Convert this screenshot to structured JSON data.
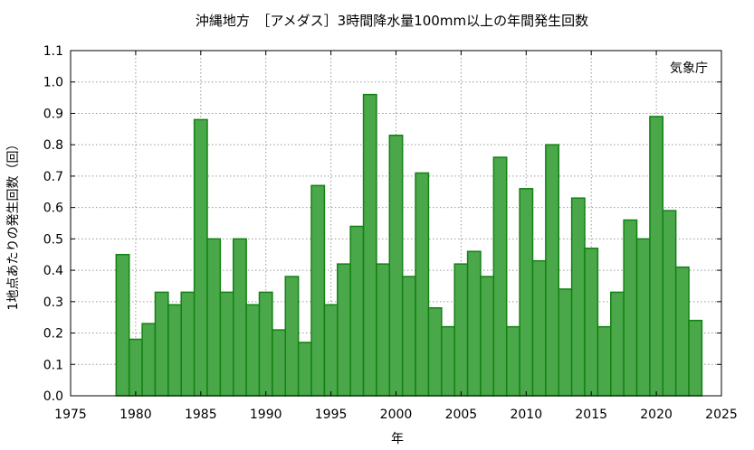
{
  "chart_data": {
    "type": "bar",
    "title": "沖縄地方　［アメダス］3時間降水量100mm以上の年間発生回数",
    "xlabel": "年",
    "ylabel": "1地点あたりの発生回数（回）",
    "credit": "気象庁",
    "xlim": [
      1975,
      2025
    ],
    "ylim": [
      0.0,
      1.1
    ],
    "xticks": [
      "1975",
      "1980",
      "1985",
      "1990",
      "1995",
      "2000",
      "2005",
      "2010",
      "2015",
      "2020",
      "2025"
    ],
    "yticks": [
      "0.0",
      "0.1",
      "0.2",
      "0.3",
      "0.4",
      "0.5",
      "0.6",
      "0.7",
      "0.8",
      "0.9",
      "1.0",
      "1.1"
    ],
    "grid": true,
    "bar_color": "#4aa74a",
    "bar_edge_color": "#128212",
    "x": [
      1979,
      1980,
      1981,
      1982,
      1983,
      1984,
      1985,
      1986,
      1987,
      1988,
      1989,
      1990,
      1991,
      1992,
      1993,
      1994,
      1995,
      1996,
      1997,
      1998,
      1999,
      2000,
      2001,
      2002,
      2003,
      2004,
      2005,
      2006,
      2007,
      2008,
      2009,
      2010,
      2011,
      2012,
      2013,
      2014,
      2015,
      2016,
      2017,
      2018,
      2019,
      2020,
      2021,
      2022,
      2023
    ],
    "values": [
      0.45,
      0.18,
      0.23,
      0.33,
      0.29,
      0.33,
      0.88,
      0.5,
      0.33,
      0.5,
      0.29,
      0.33,
      0.21,
      0.38,
      0.17,
      0.67,
      0.29,
      0.42,
      0.54,
      0.96,
      0.42,
      0.83,
      0.38,
      0.71,
      0.28,
      0.22,
      0.42,
      0.46,
      0.38,
      0.76,
      0.22,
      0.66,
      0.43,
      0.8,
      0.34,
      0.63,
      0.47,
      0.22,
      0.33,
      0.56,
      0.5,
      0.89,
      0.59,
      0.41,
      0.24
    ]
  }
}
